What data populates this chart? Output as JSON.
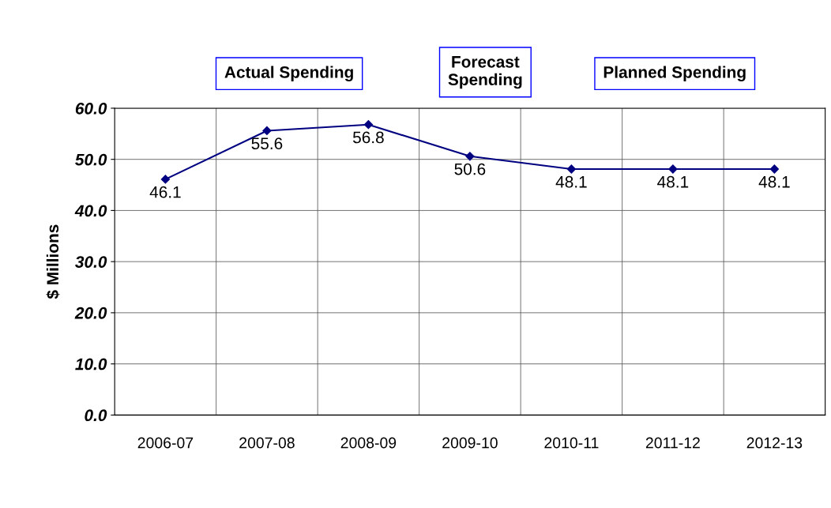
{
  "chart_data": {
    "type": "line",
    "categories": [
      "2006-07",
      "2007-08",
      "2008-09",
      "2009-10",
      "2010-11",
      "2011-12",
      "2012-13"
    ],
    "series": [
      {
        "color": "#000080",
        "values": [
          46.1,
          55.6,
          56.8,
          50.6,
          48.1,
          48.1,
          48.1
        ]
      }
    ],
    "ylabel": "$ Millions",
    "ylim": [
      0,
      60
    ],
    "yticks": [
      {
        "value": 0,
        "label": "0.0"
      },
      {
        "value": 10,
        "label": "10.0"
      },
      {
        "value": 20,
        "label": "20.0"
      },
      {
        "value": 30,
        "label": "30.0"
      },
      {
        "value": 40,
        "label": "40.0"
      },
      {
        "value": 50,
        "label": "50.0"
      },
      {
        "value": 60,
        "label": "60.0"
      }
    ],
    "annotations": [
      "Actual Spending",
      "Forecast\nSpending",
      "Planned Spending"
    ],
    "data_labels": true,
    "grid": true,
    "marker": "diamond",
    "line_style": "solid"
  }
}
